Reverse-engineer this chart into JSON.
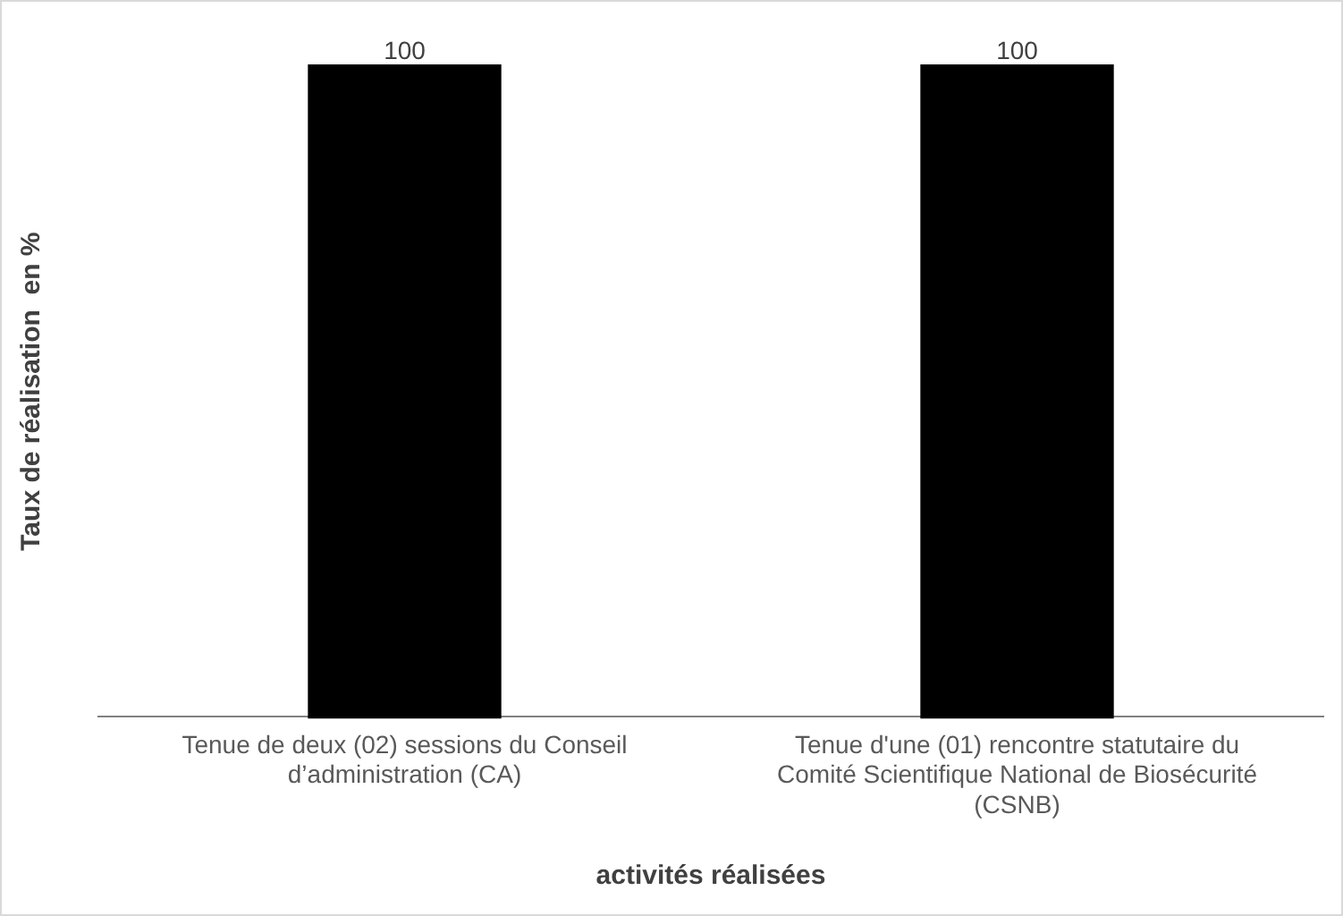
{
  "chart_data": {
    "type": "bar",
    "xlabel": "activités réalisées",
    "ylabel": "Taux de réalisation  en %",
    "categories": [
      "Tenue de deux (02) sessions du Conseil d’administration (CA)",
      "Tenue d'une (01) rencontre statutaire du Comité Scientifique National de Biosécurité (CSNB)"
    ],
    "values": [
      100,
      100
    ],
    "color": "#000000",
    "data_labels": true,
    "grid": false,
    "legend": false
  }
}
